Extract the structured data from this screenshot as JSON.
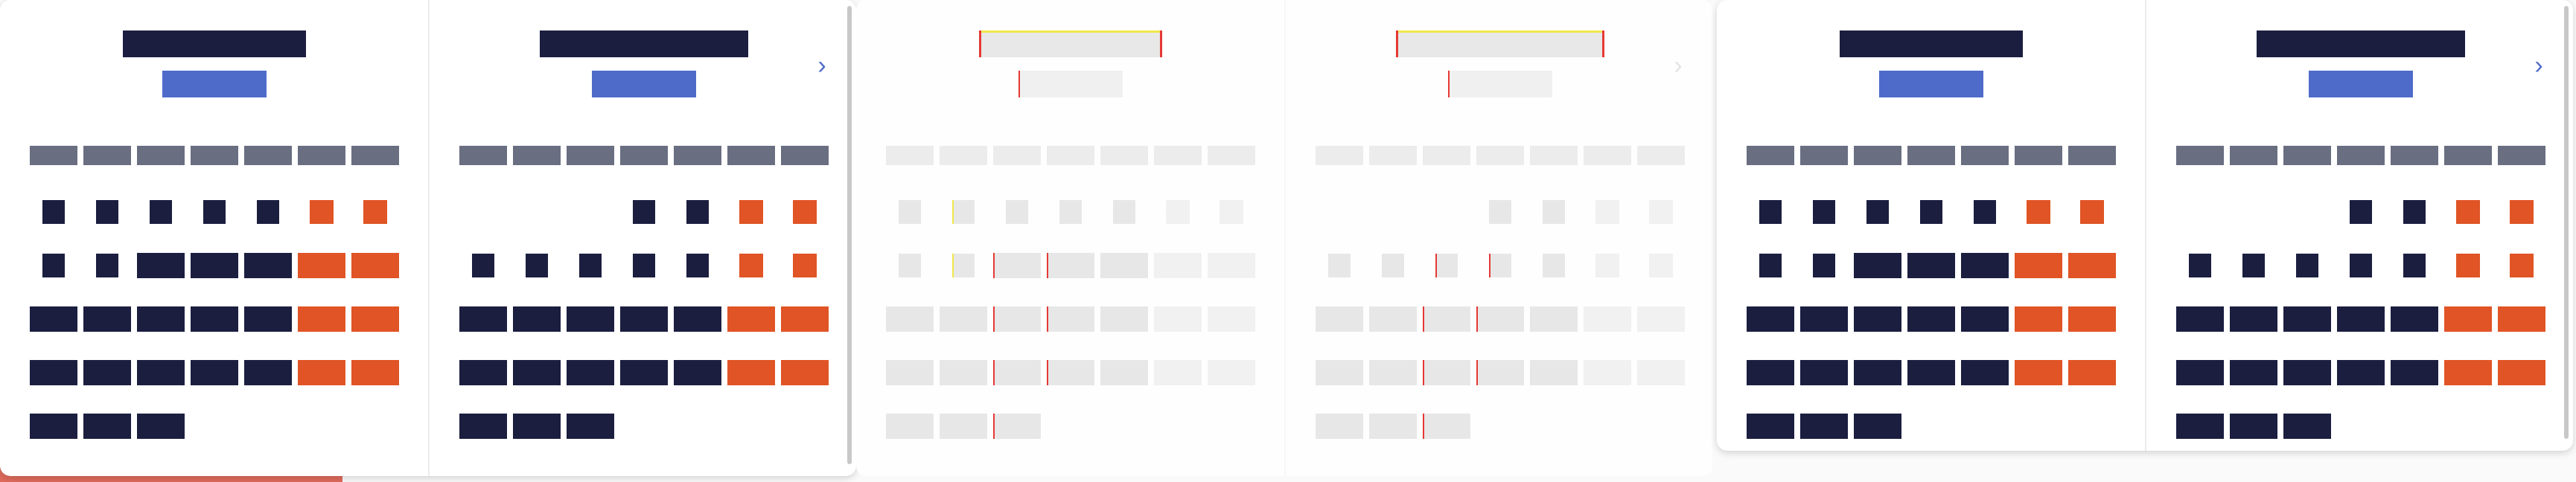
{
  "frames": [
    {
      "id": "frame-1",
      "state": "normal",
      "months": [
        {
          "title": "",
          "year": "",
          "weekdays": [
            "",
            "",
            "",
            "",
            "",
            "",
            ""
          ],
          "days": []
        },
        {
          "title": "",
          "year": "",
          "weekdays": [
            "",
            "",
            "",
            "",
            "",
            "",
            ""
          ],
          "days": []
        }
      ],
      "next_glyph": "›"
    },
    {
      "id": "frame-2",
      "state": "faded",
      "months": [
        {
          "title": "",
          "year": "",
          "weekdays": [
            "",
            "",
            "",
            "",
            "",
            "",
            ""
          ],
          "days": []
        },
        {
          "title": "",
          "year": "",
          "weekdays": [
            "",
            "",
            "",
            "",
            "",
            "",
            ""
          ],
          "days": []
        }
      ],
      "next_glyph": "›"
    },
    {
      "id": "frame-3",
      "state": "normal",
      "months": [
        {
          "title": "",
          "year": "",
          "weekdays": [
            "",
            "",
            "",
            "",
            "",
            "",
            ""
          ],
          "days": []
        },
        {
          "title": "",
          "year": "",
          "weekdays": [
            "",
            "",
            "",
            "",
            "",
            "",
            ""
          ],
          "days": []
        }
      ],
      "next_glyph": "›"
    }
  ],
  "colors": {
    "navy": "#1b1e3f",
    "accent_blue": "#4f6bc9",
    "weekend_orange": "#e05425",
    "weekday_header_gray": "#6a6e81",
    "under_strip_coral": "#df6b5c"
  },
  "icons": {
    "next": "chevron-right-icon"
  }
}
